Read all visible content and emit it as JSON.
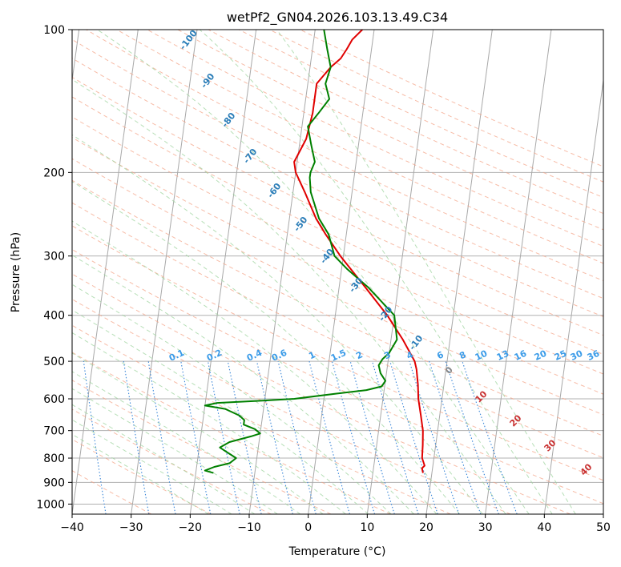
{
  "chart_data": {
    "type": "line",
    "title": "wetPf2_GN04.2026.103.13.49.C34",
    "xlabel": "Temperature (°C)",
    "ylabel": "Pressure (hPa)",
    "xlim": [
      -40,
      50
    ],
    "ylim": [
      1050,
      100
    ],
    "y_scale": "log",
    "grid": true,
    "x_ticks": [
      -40,
      -30,
      -20,
      -10,
      0,
      10,
      20,
      30,
      40,
      50
    ],
    "y_ticks": [
      100,
      200,
      300,
      400,
      500,
      600,
      700,
      800,
      900,
      1000
    ],
    "series": [
      {
        "color": "#e00000",
        "points": [
          [
            860,
            18.5
          ],
          [
            840,
            18.2
          ],
          [
            830,
            18.6
          ],
          [
            800,
            18.0
          ],
          [
            750,
            17.8
          ],
          [
            700,
            17.5
          ],
          [
            650,
            16.8
          ],
          [
            600,
            16.0
          ],
          [
            560,
            15.6
          ],
          [
            520,
            15.0
          ],
          [
            500,
            14.5
          ],
          [
            450,
            12.0
          ],
          [
            400,
            8.8
          ],
          [
            350,
            4.5
          ],
          [
            300,
            -0.5
          ],
          [
            270,
            -3.5
          ],
          [
            250,
            -5.5
          ],
          [
            220,
            -8.0
          ],
          [
            200,
            -10.0
          ],
          [
            190,
            -10.5
          ],
          [
            170,
            -9.0
          ],
          [
            150,
            -8.5
          ],
          [
            130,
            -8.5
          ],
          [
            120,
            -6.5
          ],
          [
            115,
            -5.0
          ],
          [
            110,
            -4.2
          ],
          [
            105,
            -3.5
          ],
          [
            100,
            -2.0
          ]
        ]
      },
      {
        "color": "#008000",
        "points": [
          [
            860,
            -17.0
          ],
          [
            850,
            -18.5
          ],
          [
            835,
            -17.0
          ],
          [
            820,
            -14.5
          ],
          [
            800,
            -13.5
          ],
          [
            780,
            -15.0
          ],
          [
            760,
            -16.5
          ],
          [
            740,
            -15.0
          ],
          [
            720,
            -11.5
          ],
          [
            710,
            -10.0
          ],
          [
            695,
            -11.0
          ],
          [
            680,
            -13.0
          ],
          [
            665,
            -13.0
          ],
          [
            650,
            -14.0
          ],
          [
            630,
            -16.5
          ],
          [
            620,
            -20.0
          ],
          [
            612,
            -18.0
          ],
          [
            605,
            -10.0
          ],
          [
            600,
            -5.0
          ],
          [
            585,
            2.0
          ],
          [
            575,
            7.0
          ],
          [
            565,
            9.5
          ],
          [
            550,
            10.0
          ],
          [
            530,
            9.0
          ],
          [
            510,
            8.5
          ],
          [
            495,
            9.0
          ],
          [
            480,
            10.0
          ],
          [
            450,
            11.0
          ],
          [
            400,
            10.0
          ],
          [
            350,
            5.0
          ],
          [
            320,
            1.0
          ],
          [
            300,
            -1.5
          ],
          [
            270,
            -3.0
          ],
          [
            250,
            -5.0
          ],
          [
            220,
            -7.0
          ],
          [
            205,
            -7.5
          ],
          [
            200,
            -7.5
          ],
          [
            190,
            -7.0
          ],
          [
            175,
            -8.0
          ],
          [
            160,
            -9.0
          ],
          [
            150,
            -7.5
          ],
          [
            140,
            -6.0
          ],
          [
            130,
            -7.0
          ],
          [
            120,
            -6.5
          ],
          [
            110,
            -7.5
          ],
          [
            100,
            -8.5
          ]
        ]
      }
    ],
    "dry_adiabat_labels": [
      "-100",
      "-90",
      "-80",
      "-70",
      "-60",
      "-50",
      "-40",
      "-30",
      "-20",
      "-10"
    ],
    "mixing_ratio_labels": [
      "0.1",
      "0.2",
      "0.4",
      "0.6",
      "1",
      "1.5",
      "2",
      "3",
      "4",
      "6",
      "8",
      "10",
      "13",
      "16",
      "20",
      "25",
      "30",
      "36"
    ],
    "moist_adiabat_labels": [
      "0",
      "10",
      "20",
      "30",
      "40"
    ]
  }
}
